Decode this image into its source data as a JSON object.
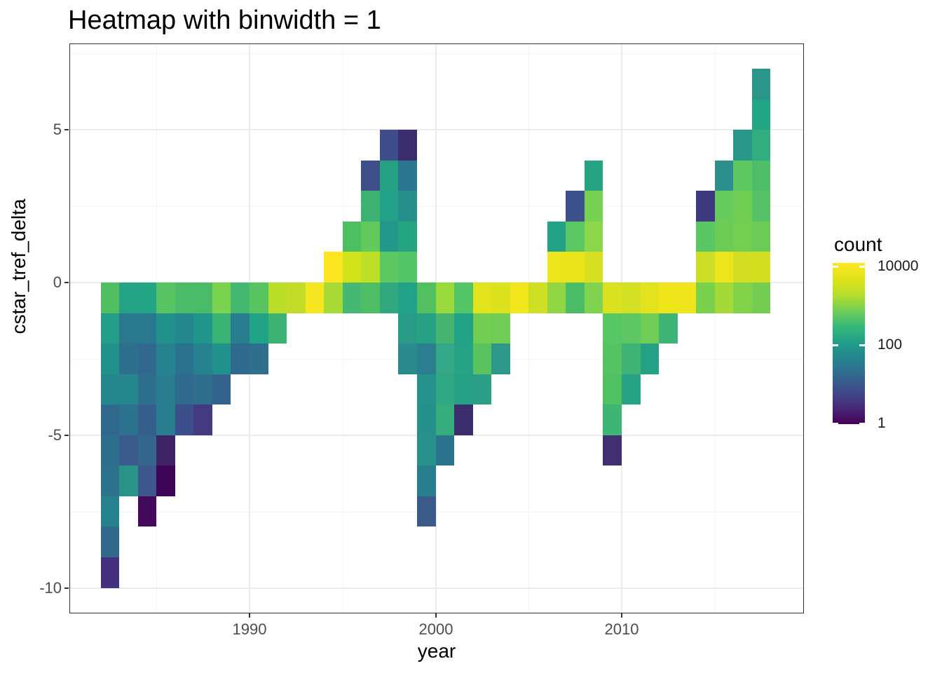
{
  "page": {
    "title": "Heatmap with binwidth = 1"
  },
  "axes": {
    "x": {
      "label": "year",
      "ticks": [
        {
          "label": "1990",
          "value": 1990
        },
        {
          "label": "2000",
          "value": 2000
        },
        {
          "label": "2010",
          "value": 2010
        }
      ],
      "minor": [
        1985,
        1995,
        2005,
        2015
      ]
    },
    "y": {
      "label": "cstar_tref_delta",
      "ticks": [
        {
          "label": "5",
          "value": 5
        },
        {
          "label": "0",
          "value": 0
        },
        {
          "label": "-5",
          "value": -5
        },
        {
          "label": "-10",
          "value": -10
        }
      ],
      "minor": [
        7.5,
        2.5,
        -2.5,
        -7.5
      ]
    }
  },
  "legend": {
    "title": "count",
    "ticks": [
      {
        "label": "10000",
        "value": 10000
      },
      {
        "label": "100",
        "value": 100
      },
      {
        "label": "1",
        "value": 1
      }
    ],
    "gradient_top_to_bottom": [
      "#fde725",
      "#dfe318",
      "#b5de2b",
      "#6ece58",
      "#35b779",
      "#1f9e89",
      "#26828e",
      "#31688e",
      "#3e4a89",
      "#482878",
      "#440154"
    ]
  },
  "chart_data": {
    "type": "heatmap",
    "title": "Heatmap with binwidth = 1",
    "xlabel": "year",
    "ylabel": "cstar_tref_delta",
    "binwidth": 1,
    "x_range": [
      1982,
      2018
    ],
    "y_range": [
      -10,
      7
    ],
    "grid": true,
    "legend_position": "right",
    "color_scale": {
      "name": "viridis",
      "transform": "log10",
      "domain": [
        1,
        12000
      ],
      "legend_title": "count"
    },
    "cells": [
      {
        "x": 1982,
        "y": -10,
        "color": "#433180",
        "count": 3
      },
      {
        "x": 1982,
        "y": -9,
        "color": "#34698e",
        "count": 19
      },
      {
        "x": 1982,
        "y": -8,
        "color": "#26818e",
        "count": 45
      },
      {
        "x": 1982,
        "y": -7,
        "color": "#2e738e",
        "count": 28
      },
      {
        "x": 1982,
        "y": -6,
        "color": "#2e6f8e",
        "count": 24
      },
      {
        "x": 1982,
        "y": -5,
        "color": "#31688e",
        "count": 18
      },
      {
        "x": 1982,
        "y": -4,
        "color": "#26868e",
        "count": 50
      },
      {
        "x": 1982,
        "y": -3,
        "color": "#21918c",
        "count": 85
      },
      {
        "x": 1982,
        "y": -2,
        "color": "#239c88",
        "count": 130
      },
      {
        "x": 1982,
        "y": -1,
        "color": "#50bf61",
        "count": 550
      },
      {
        "x": 1983,
        "y": -7,
        "color": "#2a9388",
        "count": 100
      },
      {
        "x": 1983,
        "y": -6,
        "color": "#3a5a8c",
        "count": 10
      },
      {
        "x": 1983,
        "y": -5,
        "color": "#2c718e",
        "count": 27
      },
      {
        "x": 1983,
        "y": -4,
        "color": "#26868e",
        "count": 50
      },
      {
        "x": 1983,
        "y": -3,
        "color": "#2e6f8e",
        "count": 24
      },
      {
        "x": 1983,
        "y": -2,
        "color": "#2a788e",
        "count": 32
      },
      {
        "x": 1983,
        "y": -1,
        "color": "#24a385",
        "count": 160
      },
      {
        "x": 1984,
        "y": -8,
        "color": "#440a5c",
        "count": 1
      },
      {
        "x": 1984,
        "y": -7,
        "color": "#3d568c",
        "count": 10
      },
      {
        "x": 1984,
        "y": -6,
        "color": "#34668d",
        "count": 17
      },
      {
        "x": 1984,
        "y": -5,
        "color": "#355e8d",
        "count": 13
      },
      {
        "x": 1984,
        "y": -4,
        "color": "#2e6f8e",
        "count": 24
      },
      {
        "x": 1984,
        "y": -3,
        "color": "#31688e",
        "count": 18
      },
      {
        "x": 1984,
        "y": -2,
        "color": "#2a788e",
        "count": 32
      },
      {
        "x": 1984,
        "y": -1,
        "color": "#21a585",
        "count": 175
      },
      {
        "x": 1985,
        "y": -7,
        "color": "#3e0557",
        "count": 1
      },
      {
        "x": 1985,
        "y": -6,
        "color": "#3f2466",
        "count": 2
      },
      {
        "x": 1985,
        "y": -5,
        "color": "#287d8e",
        "count": 38
      },
      {
        "x": 1985,
        "y": -4,
        "color": "#287d8e",
        "count": 38
      },
      {
        "x": 1985,
        "y": -3,
        "color": "#26828e",
        "count": 45
      },
      {
        "x": 1985,
        "y": -2,
        "color": "#21918c",
        "count": 85
      },
      {
        "x": 1985,
        "y": -1,
        "color": "#58c362",
        "count": 600
      },
      {
        "x": 1986,
        "y": -5,
        "color": "#3c4f8a",
        "count": 7
      },
      {
        "x": 1986,
        "y": -4,
        "color": "#31688e",
        "count": 18
      },
      {
        "x": 1986,
        "y": -3,
        "color": "#2c718e",
        "count": 27
      },
      {
        "x": 1986,
        "y": -2,
        "color": "#24878e",
        "count": 55
      },
      {
        "x": 1986,
        "y": -1,
        "color": "#4bbb6a",
        "count": 450
      },
      {
        "x": 1987,
        "y": -5,
        "color": "#443983",
        "count": 4
      },
      {
        "x": 1987,
        "y": -4,
        "color": "#2e6f8e",
        "count": 24
      },
      {
        "x": 1987,
        "y": -3,
        "color": "#26828e",
        "count": 45
      },
      {
        "x": 1987,
        "y": -2,
        "color": "#1f958b",
        "count": 105
      },
      {
        "x": 1987,
        "y": -1,
        "color": "#4abc68",
        "count": 450
      },
      {
        "x": 1988,
        "y": -4,
        "color": "#33628d",
        "count": 15
      },
      {
        "x": 1988,
        "y": -3,
        "color": "#21918c",
        "count": 85
      },
      {
        "x": 1988,
        "y": -2,
        "color": "#3ab273",
        "count": 300
      },
      {
        "x": 1988,
        "y": -1,
        "color": "#7bd24e",
        "count": 1000
      },
      {
        "x": 1989,
        "y": -3,
        "color": "#31688e",
        "count": 18
      },
      {
        "x": 1989,
        "y": -2,
        "color": "#287d8e",
        "count": 38
      },
      {
        "x": 1989,
        "y": -1,
        "color": "#44b871",
        "count": 380
      },
      {
        "x": 1990,
        "y": -3,
        "color": "#2e6f8e",
        "count": 24
      },
      {
        "x": 1990,
        "y": -2,
        "color": "#20a386",
        "count": 150
      },
      {
        "x": 1990,
        "y": -1,
        "color": "#57c45f",
        "count": 580
      },
      {
        "x": 1991,
        "y": -2,
        "color": "#3bb273",
        "count": 310
      },
      {
        "x": 1991,
        "y": -1,
        "color": "#bade28",
        "count": 2800
      },
      {
        "x": 1992,
        "y": -1,
        "color": "#c2dc27",
        "count": 3200
      },
      {
        "x": 1993,
        "y": -1,
        "color": "#f6e61f",
        "count": 9000
      },
      {
        "x": 1994,
        "y": -1,
        "color": "#a8da35",
        "count": 2100
      },
      {
        "x": 1994,
        "y": 0,
        "color": "#fde725",
        "count": 12000
      },
      {
        "x": 1995,
        "y": -1,
        "color": "#46b873",
        "count": 390
      },
      {
        "x": 1995,
        "y": 0,
        "color": "#d2e21b",
        "count": 4600
      },
      {
        "x": 1995,
        "y": 1,
        "color": "#4dbf62",
        "count": 520
      },
      {
        "x": 1996,
        "y": -1,
        "color": "#4fbd64",
        "count": 530
      },
      {
        "x": 1996,
        "y": 0,
        "color": "#bddf26",
        "count": 2900
      },
      {
        "x": 1996,
        "y": 1,
        "color": "#62ca5a",
        "count": 700
      },
      {
        "x": 1996,
        "y": 2,
        "color": "#3cb372",
        "count": 320
      },
      {
        "x": 1996,
        "y": 3,
        "color": "#3f4f8a",
        "count": 8
      },
      {
        "x": 1997,
        "y": -1,
        "color": "#31a87d",
        "count": 230
      },
      {
        "x": 1997,
        "y": 0,
        "color": "#5bc862",
        "count": 650
      },
      {
        "x": 1997,
        "y": 1,
        "color": "#21988a",
        "count": 115
      },
      {
        "x": 1997,
        "y": 2,
        "color": "#22a088",
        "count": 140
      },
      {
        "x": 1997,
        "y": 3,
        "color": "#26a183",
        "count": 155
      },
      {
        "x": 1997,
        "y": 4,
        "color": "#3f4e8a",
        "count": 8
      },
      {
        "x": 1998,
        "y": -3,
        "color": "#2b8a8c",
        "count": 62
      },
      {
        "x": 1998,
        "y": -2,
        "color": "#289a86",
        "count": 120
      },
      {
        "x": 1998,
        "y": -1,
        "color": "#21a187",
        "count": 150
      },
      {
        "x": 1998,
        "y": 0,
        "color": "#54c568",
        "count": 560
      },
      {
        "x": 1998,
        "y": 1,
        "color": "#26a582",
        "count": 180
      },
      {
        "x": 1998,
        "y": 2,
        "color": "#27908c",
        "count": 75
      },
      {
        "x": 1998,
        "y": 3,
        "color": "#2c758e",
        "count": 29
      },
      {
        "x": 1998,
        "y": 4,
        "color": "#3b2c6e",
        "count": 3
      },
      {
        "x": 1999,
        "y": -8,
        "color": "#3a5a8c",
        "count": 10
      },
      {
        "x": 1999,
        "y": -7,
        "color": "#297e8e",
        "count": 39
      },
      {
        "x": 1999,
        "y": -6,
        "color": "#27918a",
        "count": 80
      },
      {
        "x": 1999,
        "y": -5,
        "color": "#26918b",
        "count": 80
      },
      {
        "x": 1999,
        "y": -4,
        "color": "#27918b",
        "count": 80
      },
      {
        "x": 1999,
        "y": -3,
        "color": "#2b7e8e",
        "count": 38
      },
      {
        "x": 1999,
        "y": -2,
        "color": "#27a184",
        "count": 155
      },
      {
        "x": 1999,
        "y": -1,
        "color": "#52c05f",
        "count": 560
      },
      {
        "x": 2000,
        "y": -6,
        "color": "#2c738e",
        "count": 28
      },
      {
        "x": 2000,
        "y": -5,
        "color": "#35ad7c",
        "count": 250
      },
      {
        "x": 2000,
        "y": -4,
        "color": "#2fa884",
        "count": 220
      },
      {
        "x": 2000,
        "y": -3,
        "color": "#34a886",
        "count": 225
      },
      {
        "x": 2000,
        "y": -2,
        "color": "#46b36e",
        "count": 380
      },
      {
        "x": 2000,
        "y": -1,
        "color": "#9ad93c",
        "count": 1800
      },
      {
        "x": 2001,
        "y": -5,
        "color": "#3c2e6e",
        "count": 3
      },
      {
        "x": 2001,
        "y": -4,
        "color": "#26a185",
        "count": 160
      },
      {
        "x": 2001,
        "y": -3,
        "color": "#25a384",
        "count": 165
      },
      {
        "x": 2001,
        "y": -2,
        "color": "#21a185",
        "count": 155
      },
      {
        "x": 2001,
        "y": -1,
        "color": "#52c567",
        "count": 570
      },
      {
        "x": 2002,
        "y": -4,
        "color": "#2b9e86",
        "count": 130
      },
      {
        "x": 2002,
        "y": -3,
        "color": "#5ac35f",
        "count": 620
      },
      {
        "x": 2002,
        "y": -2,
        "color": "#72cd54",
        "count": 850
      },
      {
        "x": 2002,
        "y": -1,
        "color": "#e3e31c",
        "count": 6300
      },
      {
        "x": 2003,
        "y": -3,
        "color": "#2e978a",
        "count": 100
      },
      {
        "x": 2003,
        "y": -2,
        "color": "#70cc55",
        "count": 830
      },
      {
        "x": 2003,
        "y": -1,
        "color": "#dde21f",
        "count": 5300
      },
      {
        "x": 2004,
        "y": -1,
        "color": "#f1e51c",
        "count": 7800
      },
      {
        "x": 2005,
        "y": -1,
        "color": "#cfdf24",
        "count": 3600
      },
      {
        "x": 2006,
        "y": -1,
        "color": "#90d743",
        "count": 1500
      },
      {
        "x": 2006,
        "y": 0,
        "color": "#ece51b",
        "count": 7200
      },
      {
        "x": 2006,
        "y": 1,
        "color": "#23a285",
        "count": 150
      },
      {
        "x": 2007,
        "y": -1,
        "color": "#4abd66",
        "count": 460
      },
      {
        "x": 2007,
        "y": 0,
        "color": "#e9e41a",
        "count": 6900
      },
      {
        "x": 2007,
        "y": 1,
        "color": "#5bc863",
        "count": 660
      },
      {
        "x": 2007,
        "y": 2,
        "color": "#3c508b",
        "count": 9
      },
      {
        "x": 2008,
        "y": -1,
        "color": "#7fd34e",
        "count": 1050
      },
      {
        "x": 2008,
        "y": 0,
        "color": "#d8e021",
        "count": 4800
      },
      {
        "x": 2008,
        "y": 1,
        "color": "#8bd64a",
        "count": 1300
      },
      {
        "x": 2008,
        "y": 2,
        "color": "#77d153",
        "count": 950
      },
      {
        "x": 2008,
        "y": 3,
        "color": "#26a382",
        "count": 160
      },
      {
        "x": 2009,
        "y": -6,
        "color": "#413071",
        "count": 3
      },
      {
        "x": 2009,
        "y": -5,
        "color": "#3fb575",
        "count": 330
      },
      {
        "x": 2009,
        "y": -4,
        "color": "#50c163",
        "count": 540
      },
      {
        "x": 2009,
        "y": -3,
        "color": "#55c263",
        "count": 570
      },
      {
        "x": 2009,
        "y": -2,
        "color": "#57c766",
        "count": 640
      },
      {
        "x": 2009,
        "y": -1,
        "color": "#d9e121",
        "count": 4900
      },
      {
        "x": 2010,
        "y": -4,
        "color": "#27a383",
        "count": 155
      },
      {
        "x": 2010,
        "y": -3,
        "color": "#3fb376",
        "count": 320
      },
      {
        "x": 2010,
        "y": -2,
        "color": "#5dc863",
        "count": 670
      },
      {
        "x": 2010,
        "y": -1,
        "color": "#d4e023",
        "count": 4500
      },
      {
        "x": 2011,
        "y": -3,
        "color": "#24a185",
        "count": 160
      },
      {
        "x": 2011,
        "y": -2,
        "color": "#6fcc54",
        "count": 840
      },
      {
        "x": 2011,
        "y": -1,
        "color": "#e2e31d",
        "count": 6200
      },
      {
        "x": 2012,
        "y": -2,
        "color": "#3eb476",
        "count": 325
      },
      {
        "x": 2012,
        "y": -1,
        "color": "#eee51b",
        "count": 7500
      },
      {
        "x": 2013,
        "y": -1,
        "color": "#f0e51c",
        "count": 7700
      },
      {
        "x": 2014,
        "y": -1,
        "color": "#79d14e",
        "count": 980
      },
      {
        "x": 2014,
        "y": 0,
        "color": "#ccde25",
        "count": 3400
      },
      {
        "x": 2014,
        "y": 1,
        "color": "#5bc763",
        "count": 660
      },
      {
        "x": 2014,
        "y": 2,
        "color": "#3f3a80",
        "count": 6
      },
      {
        "x": 2015,
        "y": -1,
        "color": "#a4da37",
        "count": 2000
      },
      {
        "x": 2015,
        "y": 0,
        "color": "#ece51b",
        "count": 7200
      },
      {
        "x": 2015,
        "y": 1,
        "color": "#6ecc56",
        "count": 820
      },
      {
        "x": 2015,
        "y": 2,
        "color": "#66ca5c",
        "count": 730
      },
      {
        "x": 2015,
        "y": 3,
        "color": "#2d8f8d",
        "count": 70
      },
      {
        "x": 2016,
        "y": -1,
        "color": "#83d34a",
        "count": 1150
      },
      {
        "x": 2016,
        "y": 0,
        "color": "#d2df23",
        "count": 4400
      },
      {
        "x": 2016,
        "y": 1,
        "color": "#74ce52",
        "count": 880
      },
      {
        "x": 2016,
        "y": 2,
        "color": "#70cd54",
        "count": 840
      },
      {
        "x": 2016,
        "y": 3,
        "color": "#5ec962",
        "count": 690
      },
      {
        "x": 2016,
        "y": 4,
        "color": "#2a9689",
        "count": 95
      },
      {
        "x": 2017,
        "y": -1,
        "color": "#73cd53",
        "count": 860
      },
      {
        "x": 2017,
        "y": 0,
        "color": "#d3e022",
        "count": 4450
      },
      {
        "x": 2017,
        "y": 1,
        "color": "#6ccb56",
        "count": 800
      },
      {
        "x": 2017,
        "y": 2,
        "color": "#55c267",
        "count": 580
      },
      {
        "x": 2017,
        "y": 3,
        "color": "#4ebd6a",
        "count": 500
      },
      {
        "x": 2017,
        "y": 4,
        "color": "#31ad7f",
        "count": 250
      },
      {
        "x": 2017,
        "y": 5,
        "color": "#22a585",
        "count": 175
      },
      {
        "x": 2017,
        "y": 6,
        "color": "#2a9589",
        "count": 100
      }
    ]
  }
}
